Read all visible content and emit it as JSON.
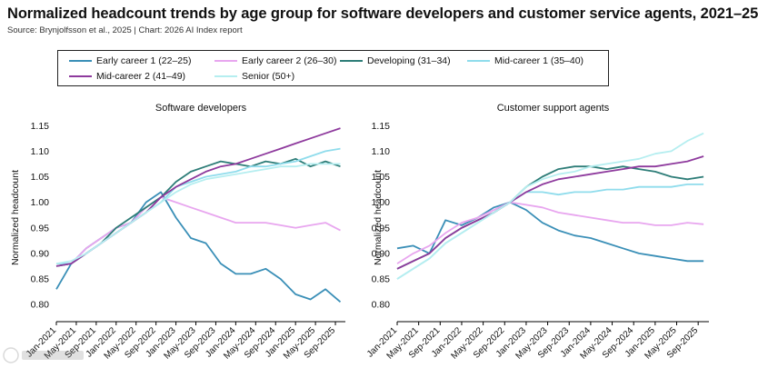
{
  "title": "Normalized headcount trends by age group for software developers and customer service agents, 2021–25",
  "source": "Source: Brynjolfsson et al., 2025 | Chart: 2026 AI Index report",
  "legend": [
    {
      "label": "Early career 1 (22–25)",
      "color": "#3a8fb7"
    },
    {
      "label": "Early career 2 (26–30)",
      "color": "#e8a6ef"
    },
    {
      "label": "Developing (31–34)",
      "color": "#2e7d78"
    },
    {
      "label": "Mid-career 1 (35–40)",
      "color": "#8fdcec"
    },
    {
      "label": "Mid-career 2 (41–49)",
      "color": "#8e3a9d"
    },
    {
      "label": "Senior (50+)",
      "color": "#b5eef0"
    }
  ],
  "chart_data": [
    {
      "type": "line",
      "title": "Software developers",
      "ylabel": "Normalized headcount",
      "ylim": [
        0.77,
        1.17
      ],
      "yticks": [
        "0.80",
        "0.85",
        "0.90",
        "0.95",
        "1.00",
        "1.05",
        "1.10",
        "1.15"
      ],
      "xticks": [
        "Jan-2021",
        "May-2021",
        "Sep-2021",
        "Jan-2022",
        "May-2022",
        "Sep-2022",
        "Jan-2023",
        "May-2023",
        "Sep-2023",
        "Jan-2024",
        "May-2024",
        "Sep-2024",
        "Jan-2025",
        "May-2025",
        "Sep-2025"
      ],
      "x": [
        "Jan-2021",
        "Apr-2021",
        "Jul-2021",
        "Oct-2021",
        "Jan-2022",
        "Apr-2022",
        "Jul-2022",
        "Oct-2022",
        "Jan-2023",
        "Apr-2023",
        "Jul-2023",
        "Oct-2023",
        "Jan-2024",
        "Apr-2024",
        "Jul-2024",
        "Oct-2024",
        "Jan-2025",
        "Apr-2025",
        "Jul-2025",
        "Oct-2025"
      ],
      "series": [
        {
          "name": "Early career 1 (22–25)",
          "values": [
            0.83,
            0.88,
            0.91,
            0.93,
            0.95,
            0.96,
            1.0,
            1.02,
            0.97,
            0.93,
            0.92,
            0.88,
            0.86,
            0.86,
            0.87,
            0.85,
            0.82,
            0.81,
            0.83,
            0.805
          ]
        },
        {
          "name": "Early career 2 (26–30)",
          "values": [
            0.88,
            0.88,
            0.91,
            0.93,
            0.95,
            0.96,
            0.99,
            1.01,
            1.0,
            0.99,
            0.98,
            0.97,
            0.96,
            0.96,
            0.96,
            0.955,
            0.95,
            0.955,
            0.96,
            0.945
          ]
        },
        {
          "name": "Developing (31–34)",
          "values": [
            0.875,
            0.88,
            0.9,
            0.92,
            0.95,
            0.97,
            0.99,
            1.01,
            1.04,
            1.06,
            1.07,
            1.08,
            1.075,
            1.07,
            1.08,
            1.075,
            1.085,
            1.07,
            1.08,
            1.07
          ]
        },
        {
          "name": "Mid-career 1 (35–40)",
          "values": [
            0.88,
            0.88,
            0.9,
            0.92,
            0.94,
            0.96,
            0.98,
            1.0,
            1.03,
            1.04,
            1.05,
            1.055,
            1.06,
            1.07,
            1.07,
            1.075,
            1.08,
            1.09,
            1.1,
            1.105
          ]
        },
        {
          "name": "Mid-career 2 (41–49)",
          "values": [
            0.875,
            0.88,
            0.9,
            0.92,
            0.94,
            0.96,
            0.98,
            1.01,
            1.03,
            1.045,
            1.06,
            1.07,
            1.075,
            1.085,
            1.095,
            1.105,
            1.115,
            1.125,
            1.135,
            1.145
          ]
        },
        {
          "name": "Senior (50+)",
          "values": [
            0.88,
            0.885,
            0.9,
            0.92,
            0.94,
            0.96,
            0.98,
            1.0,
            1.02,
            1.035,
            1.045,
            1.05,
            1.055,
            1.06,
            1.065,
            1.07,
            1.07,
            1.075,
            1.075,
            1.075
          ]
        }
      ]
    },
    {
      "type": "line",
      "title": "Customer support agents",
      "ylabel": "Normalized headcount",
      "ylim": [
        0.77,
        1.17
      ],
      "yticks": [
        "0.80",
        "0.85",
        "0.90",
        "0.95",
        "1.00",
        "1.05",
        "1.10",
        "1.15"
      ],
      "xticks": [
        "Jan-2021",
        "May-2021",
        "Sep-2021",
        "Jan-2022",
        "May-2022",
        "Sep-2022",
        "Jan-2023",
        "May-2023",
        "Sep-2023",
        "Jan-2024",
        "May-2024",
        "Sep-2024",
        "Jan-2025",
        "May-2025",
        "Sep-2025"
      ],
      "x": [
        "Jan-2021",
        "Apr-2021",
        "Jul-2021",
        "Oct-2021",
        "Jan-2022",
        "Apr-2022",
        "Jul-2022",
        "Oct-2022",
        "Jan-2023",
        "Apr-2023",
        "Jul-2023",
        "Oct-2023",
        "Jan-2024",
        "Apr-2024",
        "Jul-2024",
        "Oct-2024",
        "Jan-2025",
        "Apr-2025",
        "Jul-2025",
        "Oct-2025"
      ],
      "series": [
        {
          "name": "Early career 1 (22–25)",
          "values": [
            0.91,
            0.915,
            0.9,
            0.965,
            0.955,
            0.97,
            0.99,
            1.0,
            0.985,
            0.96,
            0.945,
            0.935,
            0.93,
            0.92,
            0.91,
            0.9,
            0.895,
            0.89,
            0.885,
            0.885
          ]
        },
        {
          "name": "Early career 2 (26–30)",
          "values": [
            0.88,
            0.9,
            0.915,
            0.94,
            0.96,
            0.97,
            0.985,
            1.0,
            0.995,
            0.99,
            0.98,
            0.975,
            0.97,
            0.965,
            0.96,
            0.96,
            0.955,
            0.955,
            0.96,
            0.957
          ]
        },
        {
          "name": "Developing (31–34)",
          "values": [
            0.87,
            0.885,
            0.9,
            0.93,
            0.95,
            0.965,
            0.98,
            1.0,
            1.03,
            1.05,
            1.065,
            1.07,
            1.07,
            1.065,
            1.07,
            1.065,
            1.06,
            1.05,
            1.045,
            1.05
          ]
        },
        {
          "name": "Mid-career 1 (35–40)",
          "values": [
            0.85,
            0.87,
            0.89,
            0.92,
            0.94,
            0.96,
            0.98,
            1.0,
            1.02,
            1.02,
            1.015,
            1.02,
            1.02,
            1.025,
            1.025,
            1.03,
            1.03,
            1.03,
            1.035,
            1.035
          ]
        },
        {
          "name": "Mid-career 2 (41–49)",
          "values": [
            0.87,
            0.885,
            0.9,
            0.93,
            0.95,
            0.965,
            0.98,
            1.0,
            1.02,
            1.035,
            1.045,
            1.05,
            1.055,
            1.06,
            1.065,
            1.07,
            1.07,
            1.075,
            1.08,
            1.09
          ]
        },
        {
          "name": "Senior (50+)",
          "values": [
            0.85,
            0.87,
            0.89,
            0.92,
            0.94,
            0.96,
            0.98,
            1.0,
            1.03,
            1.045,
            1.055,
            1.06,
            1.07,
            1.075,
            1.08,
            1.085,
            1.095,
            1.1,
            1.12,
            1.135
          ]
        }
      ]
    }
  ]
}
